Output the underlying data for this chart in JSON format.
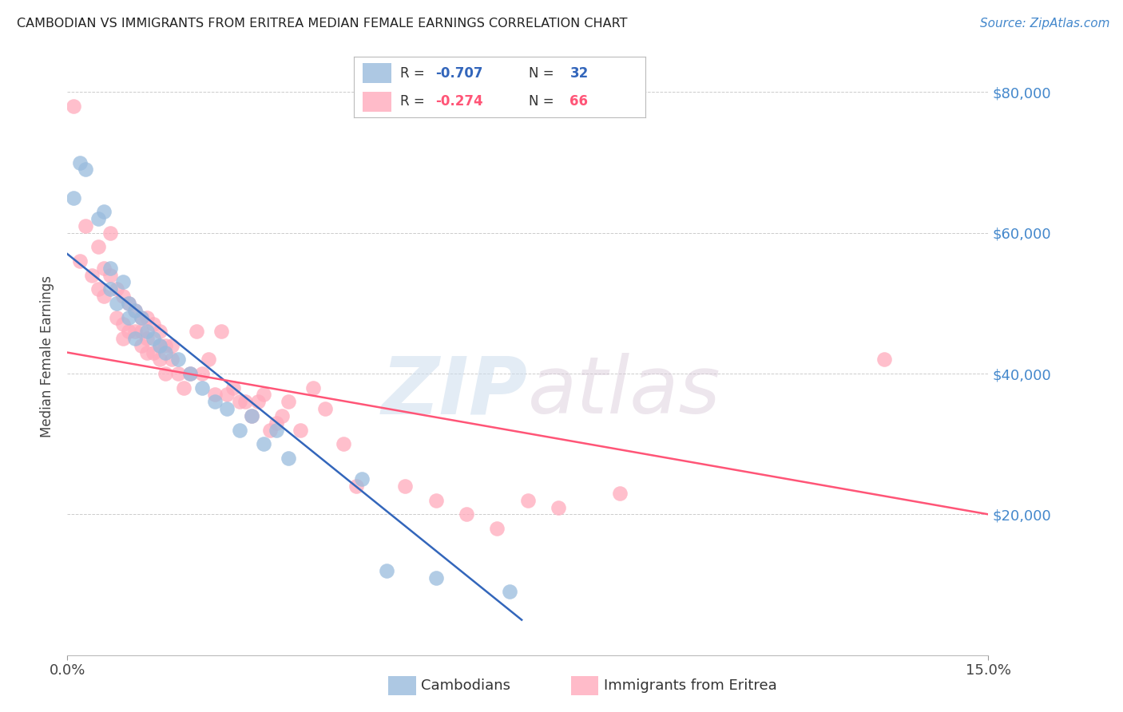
{
  "title": "CAMBODIAN VS IMMIGRANTS FROM ERITREA MEDIAN FEMALE EARNINGS CORRELATION CHART",
  "source": "Source: ZipAtlas.com",
  "ylabel": "Median Female Earnings",
  "xlim": [
    0.0,
    0.15
  ],
  "ylim": [
    0,
    85000
  ],
  "yticks": [
    0,
    20000,
    40000,
    60000,
    80000
  ],
  "xticks": [
    0.0,
    0.15
  ],
  "xtick_labels": [
    "0.0%",
    "15.0%"
  ],
  "ytick_labels": [
    "",
    "$20,000",
    "$40,000",
    "$60,000",
    "$80,000"
  ],
  "blue_R": -0.707,
  "blue_N": 32,
  "pink_R": -0.274,
  "pink_N": 66,
  "blue_color": "#99BBDD",
  "pink_color": "#FFAABC",
  "blue_line_color": "#3366BB",
  "pink_line_color": "#FF5577",
  "legend1_label": "Cambodians",
  "legend2_label": "Immigrants from Eritrea",
  "watermark": "ZIPatlas",
  "background_color": "#ffffff",
  "grid_color": "#cccccc",
  "title_color": "#222222",
  "axis_label_color": "#444444",
  "ytick_color": "#4488CC",
  "source_color": "#4488CC",
  "blue_scatter_x": [
    0.001,
    0.002,
    0.003,
    0.005,
    0.006,
    0.007,
    0.007,
    0.008,
    0.009,
    0.01,
    0.01,
    0.011,
    0.011,
    0.012,
    0.013,
    0.014,
    0.015,
    0.016,
    0.018,
    0.02,
    0.022,
    0.024,
    0.026,
    0.028,
    0.03,
    0.032,
    0.034,
    0.036,
    0.048,
    0.052,
    0.06,
    0.072
  ],
  "blue_scatter_y": [
    65000,
    70000,
    69000,
    62000,
    63000,
    55000,
    52000,
    50000,
    53000,
    50000,
    48000,
    49000,
    45000,
    48000,
    46000,
    45000,
    44000,
    43000,
    42000,
    40000,
    38000,
    36000,
    35000,
    32000,
    34000,
    30000,
    32000,
    28000,
    25000,
    12000,
    11000,
    9000
  ],
  "pink_scatter_x": [
    0.001,
    0.002,
    0.003,
    0.004,
    0.005,
    0.005,
    0.006,
    0.006,
    0.007,
    0.007,
    0.008,
    0.008,
    0.009,
    0.009,
    0.009,
    0.01,
    0.01,
    0.011,
    0.011,
    0.012,
    0.012,
    0.012,
    0.013,
    0.013,
    0.013,
    0.014,
    0.014,
    0.015,
    0.015,
    0.015,
    0.016,
    0.016,
    0.017,
    0.017,
    0.018,
    0.019,
    0.02,
    0.021,
    0.022,
    0.023,
    0.024,
    0.025,
    0.026,
    0.027,
    0.028,
    0.029,
    0.03,
    0.031,
    0.032,
    0.033,
    0.034,
    0.035,
    0.036,
    0.038,
    0.04,
    0.042,
    0.045,
    0.047,
    0.055,
    0.06,
    0.065,
    0.07,
    0.075,
    0.08,
    0.09,
    0.133
  ],
  "pink_scatter_y": [
    78000,
    56000,
    61000,
    54000,
    58000,
    52000,
    51000,
    55000,
    60000,
    54000,
    48000,
    52000,
    47000,
    51000,
    45000,
    46000,
    50000,
    46000,
    49000,
    46000,
    44000,
    48000,
    48000,
    45000,
    43000,
    43000,
    47000,
    44000,
    46000,
    42000,
    44000,
    40000,
    42000,
    44000,
    40000,
    38000,
    40000,
    46000,
    40000,
    42000,
    37000,
    46000,
    37000,
    38000,
    36000,
    36000,
    34000,
    36000,
    37000,
    32000,
    33000,
    34000,
    36000,
    32000,
    38000,
    35000,
    30000,
    24000,
    24000,
    22000,
    20000,
    18000,
    22000,
    21000,
    23000,
    42000
  ],
  "blue_line_x0": 0.0,
  "blue_line_y0": 57000,
  "blue_line_x1": 0.074,
  "blue_line_y1": 5000,
  "pink_line_x0": 0.0,
  "pink_line_y0": 43000,
  "pink_line_x1": 0.15,
  "pink_line_y1": 20000
}
